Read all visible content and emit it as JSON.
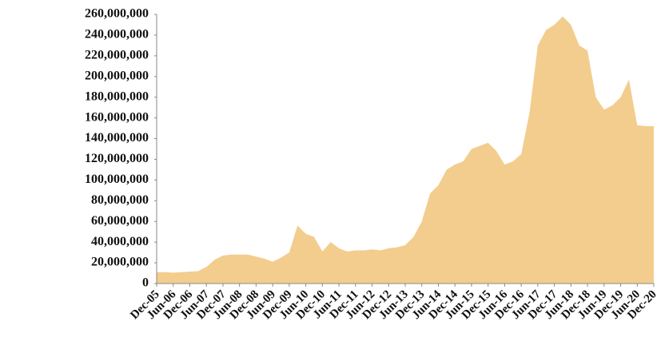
{
  "chart_data": {
    "type": "area",
    "color": "#f3cd8d",
    "categories": [
      "Dec-05",
      null,
      "Jun-06",
      null,
      "Dec-06",
      null,
      "Jun-07",
      null,
      "Dec-07",
      null,
      "Jun-08",
      null,
      "Dec-08",
      null,
      "Jun-09",
      null,
      "Dec-09",
      null,
      "Jun-10",
      null,
      "Dec-10",
      null,
      "Jun-11",
      null,
      "Dec-11",
      null,
      "Jun-12",
      null,
      "Dec-12",
      null,
      "Jun-13",
      null,
      "Dec-13",
      null,
      "Jun-14",
      null,
      "Dec-14",
      null,
      "Jun-15",
      null,
      "Dec-15",
      null,
      "Jun-16",
      null,
      "Dec-16",
      null,
      "Jun-17",
      null,
      "Dec-17",
      null,
      "Jun-18",
      null,
      "Dec-18",
      null,
      "Jun-19",
      null,
      "Dec-19",
      null,
      "Jun-20",
      null,
      "Dec-20"
    ],
    "values": [
      11000000,
      11000000,
      10500000,
      11000000,
      11500000,
      12000000,
      16000000,
      23000000,
      27000000,
      28000000,
      28000000,
      28000000,
      26000000,
      24000000,
      21000000,
      25000000,
      30000000,
      56000000,
      48000000,
      45000000,
      31000000,
      40000000,
      34000000,
      31000000,
      32000000,
      32000000,
      33000000,
      32000000,
      34000000,
      35000000,
      37000000,
      45000000,
      60000000,
      87000000,
      95000000,
      110000000,
      115000000,
      118000000,
      130000000,
      133000000,
      136000000,
      128000000,
      115000000,
      118000000,
      125000000,
      165000000,
      230000000,
      245000000,
      250000000,
      258000000,
      250000000,
      230000000,
      225000000,
      180000000,
      168000000,
      172000000,
      180000000,
      197000000,
      153000000,
      152000000,
      152000000
    ],
    "ylim": [
      0,
      260000000
    ],
    "yticks": [
      0,
      {
        "value": 20000000,
        "label": "20,000,000"
      },
      {
        "value": 40000000,
        "label": "40,000,000"
      },
      {
        "value": 60000000,
        "label": "60,000,000"
      },
      {
        "value": 80000000,
        "label": "80,000,000"
      },
      {
        "value": 100000000,
        "label": "100,000,000"
      },
      {
        "value": 120000000,
        "label": "120,000,000"
      },
      {
        "value": 140000000,
        "label": "140,000,000"
      },
      {
        "value": 160000000,
        "label": "160,000,000"
      },
      {
        "value": 180000000,
        "label": "180,000,000"
      },
      {
        "value": 200000000,
        "label": "200,000,000"
      },
      {
        "value": 220000000,
        "label": "220,000,000"
      },
      {
        "value": 240000000,
        "label": "240,000,000"
      },
      {
        "value": 260000000,
        "label": "260,000,000"
      }
    ]
  }
}
